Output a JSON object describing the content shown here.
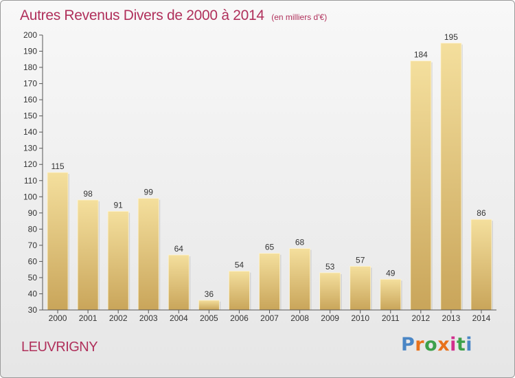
{
  "chart_data": {
    "type": "bar",
    "title": "Autres Revenus Divers de 2000 à 2014",
    "subtitle": "(en milliers d'€)",
    "categories": [
      "2000",
      "2001",
      "2002",
      "2003",
      "2004",
      "2005",
      "2006",
      "2007",
      "2008",
      "2009",
      "2010",
      "2011",
      "2012",
      "2013",
      "2014"
    ],
    "values": [
      115,
      98,
      91,
      99,
      64,
      36,
      54,
      65,
      68,
      53,
      57,
      49,
      184,
      195,
      86
    ],
    "ylim": [
      30,
      200
    ],
    "yticks": [
      30,
      40,
      50,
      60,
      70,
      80,
      90,
      100,
      110,
      120,
      130,
      140,
      150,
      160,
      170,
      180,
      190,
      200
    ],
    "grid": false,
    "bar_color": "#e8cd84"
  },
  "footer": {
    "commune": "LEUVRIGNY",
    "logo": "Proxiti"
  },
  "colors": {
    "title": "#b0305b",
    "logo_letters": [
      "#4a86c5",
      "#e8721c",
      "#3da04a",
      "#e8721c",
      "#d22e8d",
      "#3da04a",
      "#4a86c5"
    ]
  }
}
